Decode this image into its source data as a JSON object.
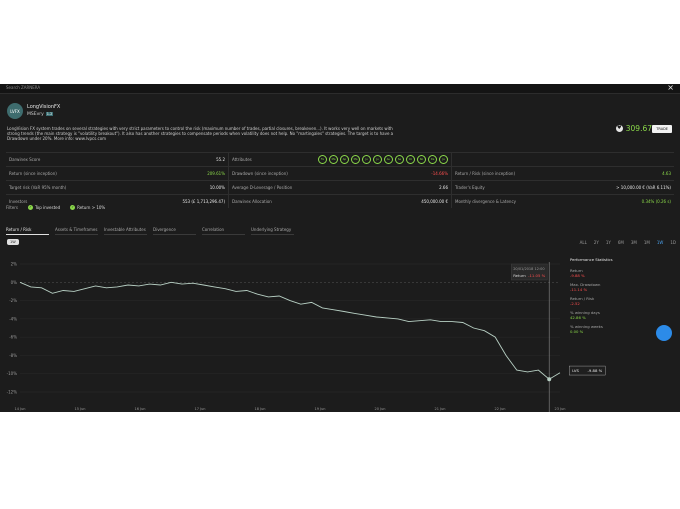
{
  "topbar": {
    "search_placeholder": "Search ZARNERA",
    "close_icon": "×"
  },
  "strategy": {
    "avatar": "LVFX",
    "name": "LongVisionFX",
    "author": "MSEvry",
    "author_badge": "1.2",
    "description": "LongVision FX system trades on several strategies with very strict parameters to control the risk (maximum number of trades, partial closures, breakeven...). It works very well on markets with strong trends (the main strategy is \"volatility breakout\"). It also has another strategies to compensate periods when volatility does not help. No \"martingales\" strategies. The target is to have a Drawdown under 20%. More info: www.lvpcs.com",
    "score": "309.67",
    "trade_button": "TRADE",
    "heart_icon": "heart-icon"
  },
  "metrics": [
    [
      {
        "label": "Darwinex Score",
        "value": "55.2",
        "tone": ""
      },
      {
        "label": "Attributes",
        "value": "",
        "tone": "",
        "months": true
      },
      {
        "label": "",
        "value": "",
        "tone": ""
      }
    ],
    [
      {
        "label": "Return (since inception)",
        "value": "209.61%",
        "tone": "g"
      },
      {
        "label": "Drawdown (since inception)",
        "value": "-14.66%",
        "tone": "r"
      },
      {
        "label": "Return / Risk (since inception)",
        "value": "4.63",
        "tone": "g"
      }
    ],
    [
      {
        "label": "Target risk (VaR 95% month)",
        "value": "10.00%",
        "tone": ""
      },
      {
        "label": "Average D-Leverage / Position",
        "value": "2.66",
        "tone": ""
      },
      {
        "label": "Trader's Equity",
        "value": "> 10,000.00 € (VaR 6.11%)",
        "tone": ""
      }
    ],
    [
      {
        "label": "Investors",
        "value": "553 (£ 1,713,296.47)",
        "tone": ""
      },
      {
        "label": "Darwinex Allocation",
        "value": "450,000.00 €",
        "tone": ""
      },
      {
        "label": "Monthly divergence & Latency",
        "value": "0.34% (0.26 s)",
        "tone": "g"
      }
    ]
  ],
  "months": [
    "Fe",
    "Ma",
    "Ap",
    "Ma",
    "Ju",
    "Ju",
    "Au",
    "Se",
    "Oc",
    "No",
    "De",
    "Ja"
  ],
  "filters": {
    "label": "Filters",
    "chips": [
      "Top invested",
      "Return > 10%"
    ]
  },
  "tabs": [
    "Return / Risk",
    "Assets & Timeframes",
    "Investable Attributes",
    "Divergence",
    "Correlation",
    "Underlying Strategy"
  ],
  "toggle": "1W",
  "periods": [
    "ALL",
    "2Y",
    "1Y",
    "6M",
    "3M",
    "1M",
    "1W",
    "1D"
  ],
  "active_period": "1W",
  "stats": {
    "title": "Performance Statistics",
    "items": [
      {
        "label": "Return",
        "value": "-9.88 %",
        "tone": "r"
      },
      {
        "label": "Max. Drawdown",
        "value": "-11.14 %",
        "tone": "r"
      },
      {
        "label": "Return / Risk",
        "value": "-2.52",
        "tone": "r"
      },
      {
        "label": "% winning days",
        "value": "42.86 %",
        "tone": "g"
      },
      {
        "label": "% winning weeks",
        "value": "0.00 %",
        "tone": "g"
      }
    ]
  },
  "chart_data": {
    "type": "line",
    "yticks": [
      "2%",
      "0%",
      "-2%",
      "-4%",
      "-6%",
      "-8%",
      "-10%",
      "-12%"
    ],
    "ylim": [
      -12,
      2
    ],
    "xticks": [
      "14 Jun",
      "15 Jun",
      "16 Jun",
      "17 Jun",
      "18 Jun",
      "19 Jun",
      "20 Jun",
      "21 Jun",
      "22 Jun",
      "23 Jun"
    ],
    "series": [
      {
        "name": "LVS",
        "x": [
          0,
          2,
          4,
          6,
          8,
          10,
          12,
          14,
          16,
          18,
          20,
          22,
          24,
          26,
          28,
          30,
          32,
          34,
          36,
          38,
          40,
          42,
          44,
          46,
          48,
          50,
          52,
          54,
          56,
          58,
          60,
          62,
          64,
          66,
          68,
          70,
          72,
          74,
          76,
          78,
          80,
          82,
          84,
          86,
          88,
          90,
          92,
          94,
          96,
          98,
          100
        ],
        "y": [
          0,
          -0.5,
          -0.6,
          -1.2,
          -0.9,
          -1.0,
          -0.7,
          -0.4,
          -0.6,
          -0.5,
          -0.3,
          -0.4,
          -0.2,
          -0.3,
          0,
          -0.2,
          -0.1,
          -0.3,
          -0.5,
          -0.7,
          -1.0,
          -0.9,
          -1.3,
          -1.6,
          -1.5,
          -2.0,
          -2.4,
          -2.2,
          -2.8,
          -3.0,
          -3.2,
          -3.4,
          -3.6,
          -3.8,
          -3.9,
          -4.0,
          -4.3,
          -4.2,
          -4.1,
          -4.3,
          -4.3,
          -4.4,
          -5.0,
          -5.3,
          -6.0,
          -8.0,
          -9.6,
          -9.8,
          -9.6,
          -10.6,
          -9.9
        ]
      }
    ],
    "tooltip": {
      "label": "LVS",
      "value": "-9.88 %"
    },
    "crosshair": {
      "date": "20/01/2018 12:00",
      "label": "Return",
      "value": "-11.05 %"
    }
  }
}
